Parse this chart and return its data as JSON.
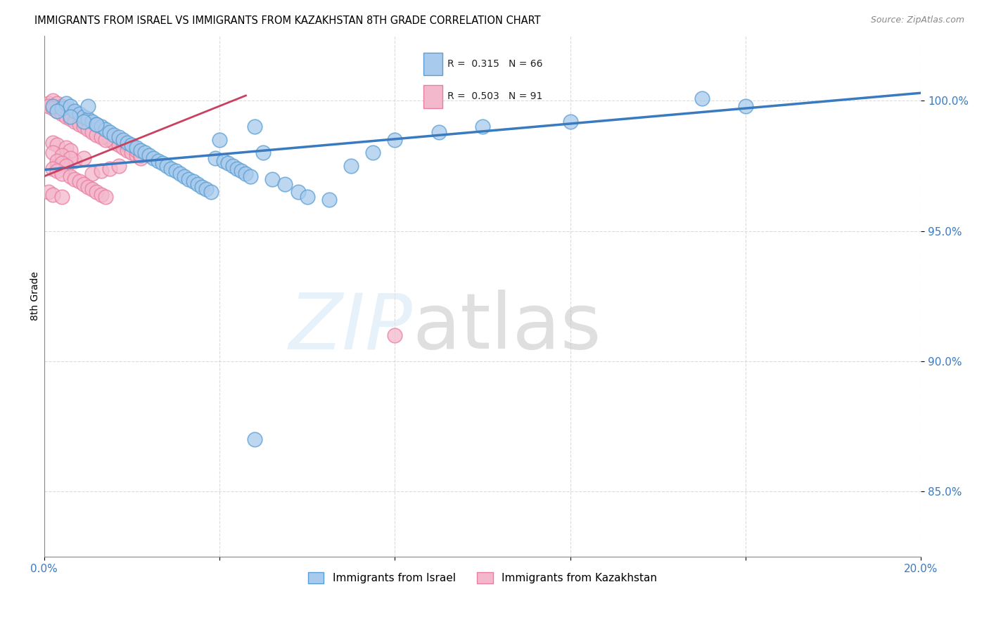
{
  "title": "IMMIGRANTS FROM ISRAEL VS IMMIGRANTS FROM KAZAKHSTAN 8TH GRADE CORRELATION CHART",
  "source": "Source: ZipAtlas.com",
  "ylabel": "8th Grade",
  "yticks": [
    0.85,
    0.9,
    0.95,
    1.0
  ],
  "ytick_labels": [
    "85.0%",
    "90.0%",
    "95.0%",
    "100.0%"
  ],
  "xlim": [
    0.0,
    0.2
  ],
  "ylim": [
    0.825,
    1.025
  ],
  "israel_color": "#a8caec",
  "israel_edge": "#5a9fd4",
  "kazakhstan_color": "#f4b8cc",
  "kazakhstan_edge": "#e87fa0",
  "israel_R": 0.315,
  "israel_N": 66,
  "kazakhstan_R": 0.503,
  "kazakhstan_N": 91,
  "israel_line_color": "#3a7abf",
  "kazakhstan_line_color": "#c94060",
  "israel_line_x": [
    0.0,
    0.2
  ],
  "israel_line_y": [
    0.9735,
    1.003
  ],
  "kazakhstan_line_x": [
    0.0,
    0.046
  ],
  "kazakhstan_line_y": [
    0.971,
    1.002
  ],
  "israel_points_x": [
    0.002,
    0.004,
    0.005,
    0.006,
    0.007,
    0.008,
    0.009,
    0.01,
    0.01,
    0.011,
    0.012,
    0.013,
    0.014,
    0.015,
    0.016,
    0.017,
    0.018,
    0.019,
    0.02,
    0.021,
    0.022,
    0.023,
    0.024,
    0.025,
    0.026,
    0.027,
    0.028,
    0.029,
    0.03,
    0.031,
    0.032,
    0.033,
    0.034,
    0.035,
    0.036,
    0.037,
    0.038,
    0.039,
    0.04,
    0.041,
    0.042,
    0.043,
    0.044,
    0.045,
    0.046,
    0.047,
    0.048,
    0.05,
    0.052,
    0.055,
    0.058,
    0.06,
    0.065,
    0.07,
    0.075,
    0.08,
    0.09,
    0.1,
    0.12,
    0.15,
    0.16,
    0.003,
    0.006,
    0.009,
    0.012,
    0.048
  ],
  "israel_points_y": [
    0.998,
    0.997,
    0.999,
    0.998,
    0.996,
    0.995,
    0.994,
    0.993,
    0.998,
    0.992,
    0.991,
    0.99,
    0.989,
    0.988,
    0.987,
    0.986,
    0.985,
    0.984,
    0.983,
    0.982,
    0.981,
    0.98,
    0.979,
    0.978,
    0.977,
    0.976,
    0.975,
    0.974,
    0.973,
    0.972,
    0.971,
    0.97,
    0.969,
    0.968,
    0.967,
    0.966,
    0.965,
    0.978,
    0.985,
    0.977,
    0.976,
    0.975,
    0.974,
    0.973,
    0.972,
    0.971,
    0.99,
    0.98,
    0.97,
    0.968,
    0.965,
    0.963,
    0.962,
    0.975,
    0.98,
    0.985,
    0.988,
    0.99,
    0.992,
    1.001,
    0.998,
    0.996,
    0.994,
    0.992,
    0.991,
    0.87
  ],
  "kazakhstan_points_x": [
    0.001,
    0.002,
    0.002,
    0.003,
    0.003,
    0.004,
    0.004,
    0.005,
    0.005,
    0.006,
    0.006,
    0.007,
    0.007,
    0.008,
    0.008,
    0.009,
    0.009,
    0.01,
    0.01,
    0.011,
    0.011,
    0.012,
    0.012,
    0.013,
    0.013,
    0.014,
    0.014,
    0.015,
    0.015,
    0.016,
    0.016,
    0.017,
    0.017,
    0.018,
    0.018,
    0.019,
    0.019,
    0.02,
    0.02,
    0.021,
    0.021,
    0.022,
    0.022,
    0.003,
    0.005,
    0.007,
    0.009,
    0.011,
    0.013,
    0.015,
    0.017,
    0.001,
    0.002,
    0.003,
    0.004,
    0.005,
    0.006,
    0.007,
    0.008,
    0.009,
    0.01,
    0.011,
    0.012,
    0.013,
    0.014,
    0.002,
    0.003,
    0.005,
    0.006,
    0.002,
    0.004,
    0.006,
    0.003,
    0.004,
    0.005,
    0.002,
    0.003,
    0.08,
    0.004,
    0.006,
    0.007,
    0.008,
    0.009,
    0.01,
    0.011,
    0.012,
    0.013,
    0.014,
    0.001,
    0.002,
    0.004
  ],
  "kazakhstan_points_y": [
    0.999,
    0.998,
    1.0,
    0.999,
    0.997,
    0.998,
    0.996,
    0.997,
    0.995,
    0.996,
    0.994,
    0.995,
    0.993,
    0.994,
    0.992,
    0.993,
    0.991,
    0.992,
    0.99,
    0.991,
    0.989,
    0.99,
    0.988,
    0.989,
    0.987,
    0.988,
    0.986,
    0.987,
    0.985,
    0.986,
    0.984,
    0.985,
    0.983,
    0.984,
    0.982,
    0.983,
    0.981,
    0.982,
    0.98,
    0.979,
    0.981,
    0.978,
    0.979,
    0.975,
    0.976,
    0.977,
    0.978,
    0.972,
    0.973,
    0.974,
    0.975,
    0.998,
    0.997,
    0.996,
    0.995,
    0.994,
    0.993,
    0.992,
    0.991,
    0.99,
    0.989,
    0.988,
    0.987,
    0.986,
    0.985,
    0.984,
    0.983,
    0.982,
    0.981,
    0.98,
    0.979,
    0.978,
    0.977,
    0.976,
    0.975,
    0.974,
    0.973,
    0.91,
    0.972,
    0.971,
    0.97,
    0.969,
    0.968,
    0.967,
    0.966,
    0.965,
    0.964,
    0.963,
    0.965,
    0.964,
    0.963
  ]
}
